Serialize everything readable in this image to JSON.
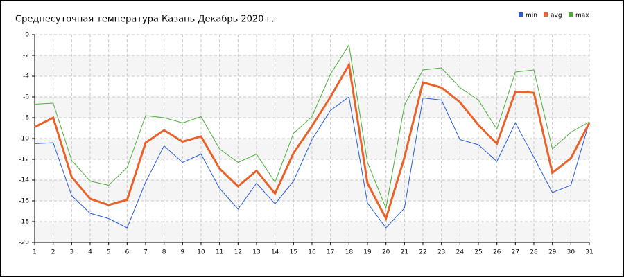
{
  "chart_data": {
    "type": "line",
    "title": "Среднесуточная температура Казань  Декабрь 2020 г.",
    "x": [
      1,
      2,
      3,
      4,
      5,
      6,
      7,
      8,
      9,
      10,
      11,
      12,
      13,
      14,
      15,
      16,
      17,
      18,
      19,
      20,
      21,
      22,
      23,
      24,
      25,
      26,
      27,
      28,
      29,
      30,
      31
    ],
    "xlim": [
      1,
      31
    ],
    "xticks": [
      1,
      2,
      3,
      4,
      5,
      6,
      7,
      8,
      9,
      10,
      11,
      12,
      13,
      14,
      15,
      16,
      17,
      18,
      19,
      20,
      21,
      22,
      23,
      24,
      25,
      26,
      27,
      28,
      29,
      30,
      31
    ],
    "ylim": [
      -20,
      0
    ],
    "yticks": [
      0,
      -2,
      -4,
      -6,
      -8,
      -10,
      -12,
      -14,
      -16,
      -18,
      -20
    ],
    "grid": true,
    "legend": "top-right",
    "series": [
      {
        "name": "min",
        "color": "#2a5bd7",
        "values": [
          -10.5,
          -10.4,
          -15.5,
          -17.2,
          -17.7,
          -18.6,
          -14.2,
          -10.7,
          -12.3,
          -11.5,
          -14.8,
          -16.8,
          -14.3,
          -16.3,
          -14.1,
          -10.1,
          -7.3,
          -6.0,
          -16.2,
          -18.6,
          -16.7,
          -6.1,
          -6.3,
          -10.1,
          -10.6,
          -12.2,
          -8.5,
          -11.8,
          -15.2,
          -14.5,
          -8.4
        ]
      },
      {
        "name": "avg",
        "color": "#e8622a",
        "values": [
          -8.9,
          -8.0,
          -13.7,
          -15.8,
          -16.4,
          -15.9,
          -10.4,
          -9.2,
          -10.3,
          -9.8,
          -12.9,
          -14.6,
          -13.1,
          -15.3,
          -11.4,
          -8.8,
          -6.0,
          -2.9,
          -14.3,
          -17.7,
          -11.8,
          -4.6,
          -5.1,
          -6.5,
          -8.7,
          -10.5,
          -5.5,
          -5.6,
          -13.3,
          -11.9,
          -8.5
        ]
      },
      {
        "name": "max",
        "color": "#4caf3a",
        "values": [
          -6.7,
          -6.6,
          -12.1,
          -14.1,
          -14.5,
          -12.8,
          -7.8,
          -8.0,
          -8.5,
          -7.9,
          -11.0,
          -12.3,
          -11.5,
          -14.2,
          -9.5,
          -7.9,
          -3.8,
          -1.0,
          -12.3,
          -16.7,
          -6.8,
          -3.4,
          -3.2,
          -5.1,
          -6.3,
          -9.1,
          -3.6,
          -3.4,
          -11.0,
          -9.4,
          -8.4
        ]
      }
    ]
  }
}
